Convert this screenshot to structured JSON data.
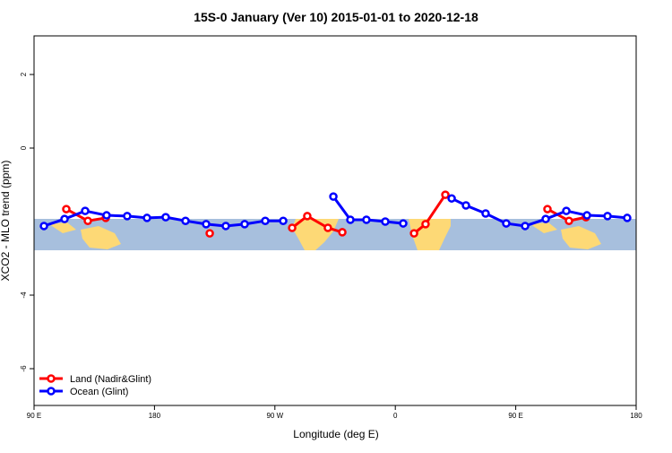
{
  "chart_data": {
    "type": "line",
    "title": "15S-0 January (Ver 10)   2015-01-01 to 2020-12-18",
    "xlabel": "Longitude (deg E)",
    "ylabel": "XCO2 - MLO trend (ppm)",
    "xlim": [
      90,
      540
    ],
    "ylim": [
      -7,
      3.05
    ],
    "xticks": [
      {
        "value": 90,
        "label": "90 E"
      },
      {
        "value": 180,
        "label": "180"
      },
      {
        "value": 270,
        "label": "90 W"
      },
      {
        "value": 360,
        "label": "0"
      },
      {
        "value": 450,
        "label": "90 E"
      },
      {
        "value": 540,
        "label": "180"
      }
    ],
    "yticks": [
      2,
      0,
      -4,
      -6
    ],
    "legend": "bottom-left",
    "series": [
      {
        "name": "Land (Nadir&Glint)",
        "color": "#ff0000",
        "x": [
          114.1,
          130.2,
          143.6,
          null,
          221.3,
          null,
          282.9,
          294.2,
          309.6,
          320.4,
          null,
          374.0,
          382.6,
          397.4,
          null,
          473.7,
          489.8,
          502.5
        ],
        "values": [
          -1.66,
          -1.98,
          -1.9,
          null,
          -2.32,
          null,
          -2.17,
          -1.85,
          -2.17,
          -2.29,
          null,
          -2.32,
          -2.07,
          -1.27,
          null,
          -1.66,
          -1.98,
          -1.88
        ]
      },
      {
        "name": "Ocean (Glint)",
        "color": "#0000ff",
        "x": [
          97.4,
          112.8,
          128.2,
          144.2,
          159.6,
          174.4,
          188.4,
          203.2,
          218.6,
          233.3,
          247.4,
          262.8,
          276.2,
          null,
          313.7,
          326.4,
          338.4,
          352.5,
          365.9,
          null,
          402.1,
          412.8,
          427.5,
          442.9,
          457.0,
          472.4,
          487.8,
          503.2,
          518.6,
          533.3
        ],
        "values": [
          -2.12,
          -1.93,
          -1.71,
          -1.83,
          -1.85,
          -1.9,
          -1.88,
          -1.98,
          -2.07,
          -2.12,
          -2.07,
          -1.98,
          -1.98,
          null,
          -1.32,
          -1.95,
          -1.95,
          -2.0,
          -2.05,
          null,
          -1.37,
          -1.56,
          -1.78,
          -2.05,
          -2.12,
          -1.93,
          -1.71,
          -1.83,
          -1.85,
          -1.9
        ]
      }
    ]
  }
}
